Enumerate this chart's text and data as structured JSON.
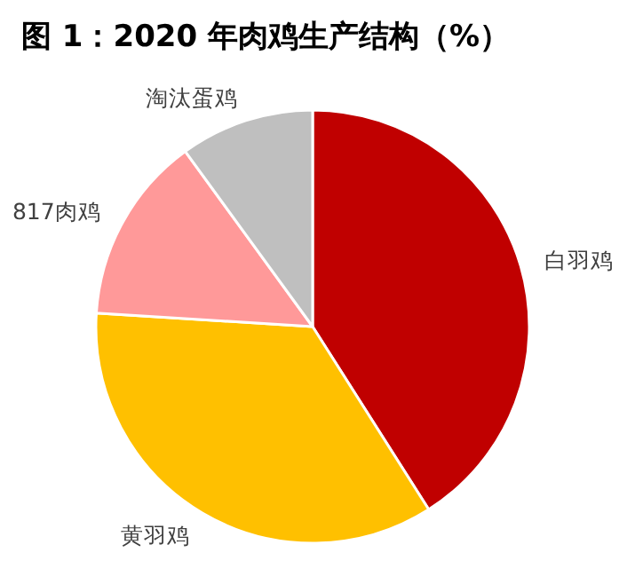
{
  "chart_data": {
    "type": "pie",
    "title": "图 1：2020 年肉鸡生产结构（%）",
    "categories": [
      "白羽鸡",
      "黄羽鸡",
      "817肉鸡",
      "淘汰蛋鸡"
    ],
    "values": [
      41,
      35,
      14,
      10
    ],
    "colors": [
      "#c00000",
      "#ffc000",
      "#ff9999",
      "#bfbfbf"
    ]
  }
}
